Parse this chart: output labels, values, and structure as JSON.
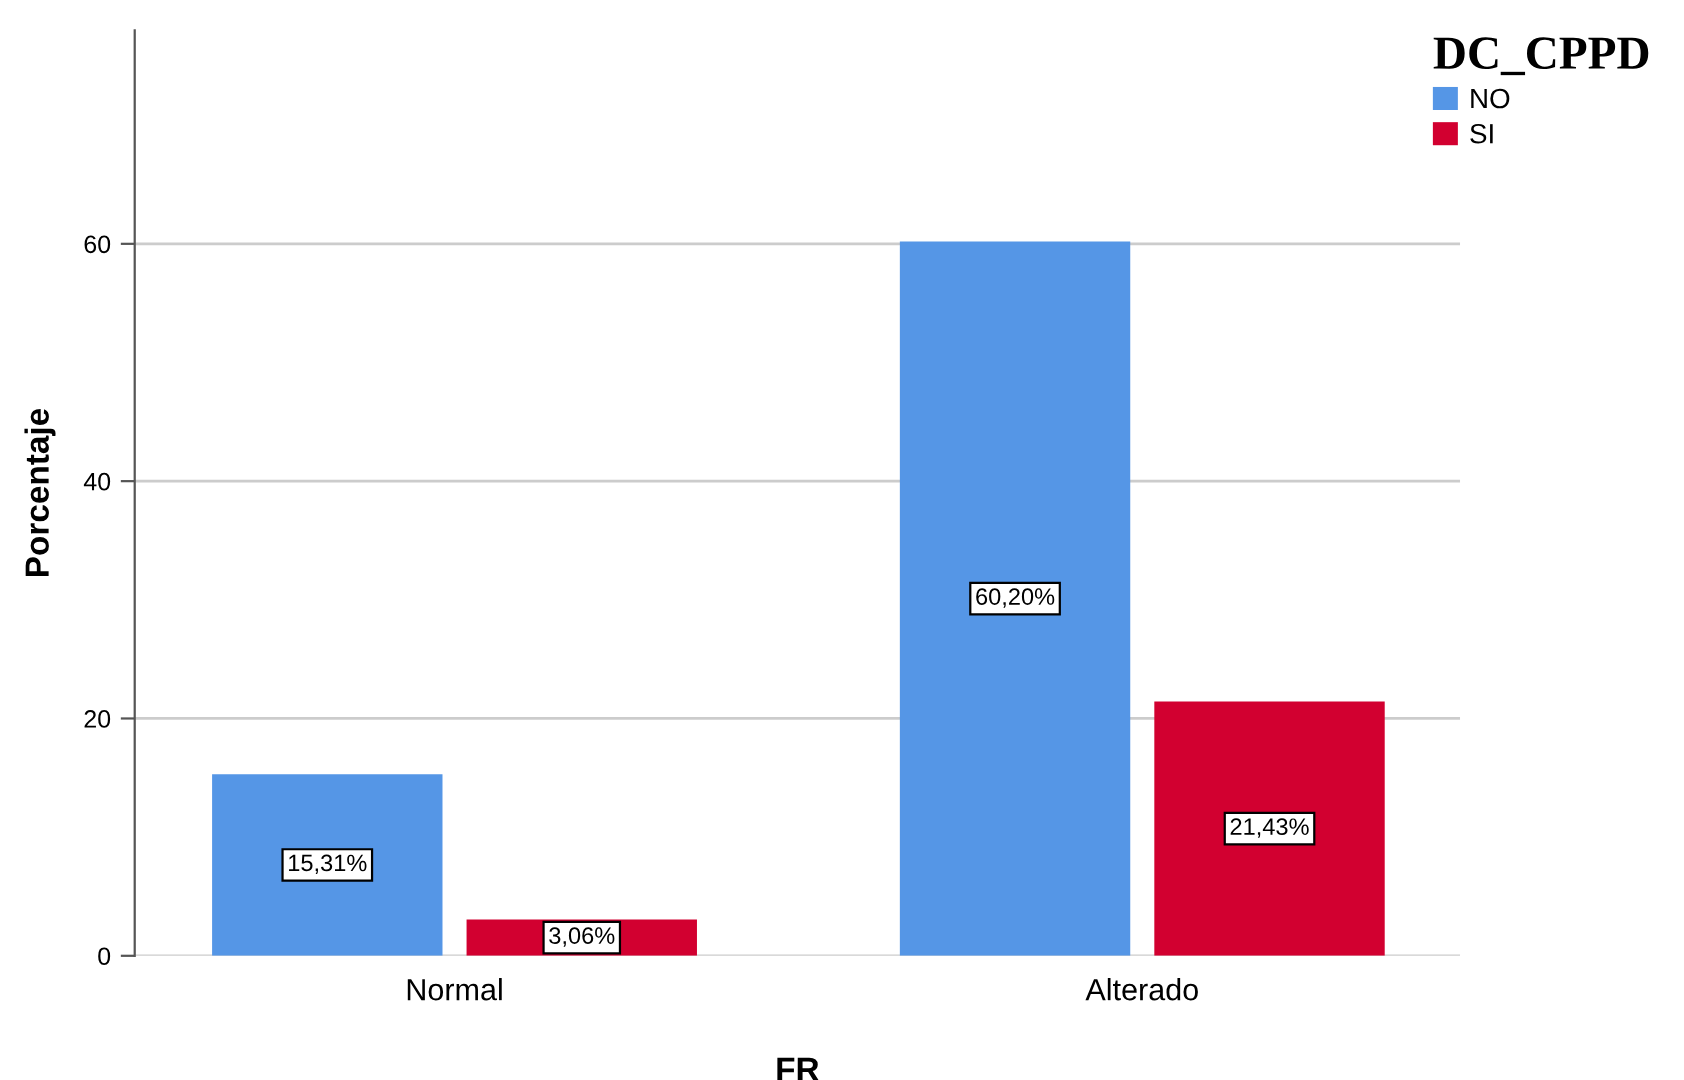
{
  "chart_data": {
    "type": "bar",
    "xlabel": "FR",
    "ylabel": "Porcentaje",
    "legend_title": "DC_CPPD",
    "categories": [
      "Normal",
      "Alterado"
    ],
    "series": [
      {
        "name": "NO",
        "color": "#5596e6",
        "values": [
          15.31,
          60.2
        ],
        "value_labels": [
          "15,31%",
          "60,20%"
        ]
      },
      {
        "name": "SI",
        "color": "#d20030",
        "values": [
          3.06,
          21.43
        ],
        "value_labels": [
          "3,06%",
          "21,43%"
        ]
      }
    ],
    "ylim": [
      0,
      78
    ],
    "yticks": [
      0,
      20,
      40,
      60
    ],
    "grid": "y",
    "legend": "top right"
  }
}
